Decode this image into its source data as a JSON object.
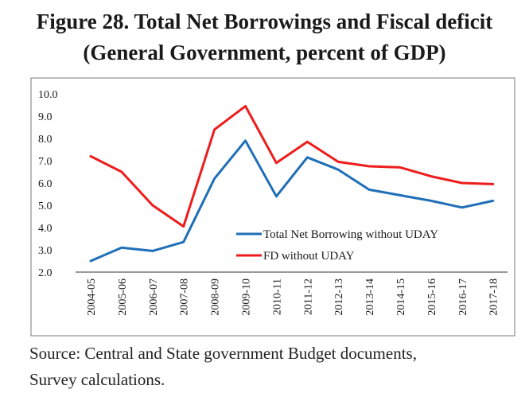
{
  "title_line1": "Figure 28. Total Net Borrowings and Fiscal deficit",
  "title_line2": "(General Government, percent of GDP)",
  "source_line1": "Source: Central and State government Budget documents,",
  "source_line2": "Survey calculations.",
  "chart_data": {
    "type": "line",
    "categories": [
      "2004-05",
      "2005-06",
      "2006-07",
      "2007-08",
      "2008-09",
      "2009-10",
      "2010-11",
      "2011-12",
      "2012-13",
      "2013-14",
      "2014-15",
      "2015-16",
      "2016-17",
      "2017-18"
    ],
    "series": [
      {
        "name": "Total Net Borrowing without UDAY",
        "color": "#1f6fb8",
        "values": [
          2.5,
          3.1,
          2.95,
          3.35,
          6.2,
          7.9,
          5.4,
          7.15,
          6.6,
          5.7,
          5.45,
          5.2,
          4.9,
          5.2
        ]
      },
      {
        "name": "FD without UDAY",
        "color": "#ee1c1c",
        "values": [
          7.2,
          6.5,
          5.0,
          4.05,
          8.4,
          9.45,
          6.9,
          7.85,
          6.95,
          6.75,
          6.7,
          6.3,
          6.0,
          5.95
        ]
      }
    ],
    "yticks": [
      "10.0",
      "9.0",
      "8.0",
      "7.0",
      "6.0",
      "5.0",
      "4.0",
      "3.0",
      "2.0"
    ],
    "ylim": [
      2,
      10
    ],
    "xlabel": "",
    "ylabel": "",
    "grid": false,
    "legend_position": "center-right"
  }
}
